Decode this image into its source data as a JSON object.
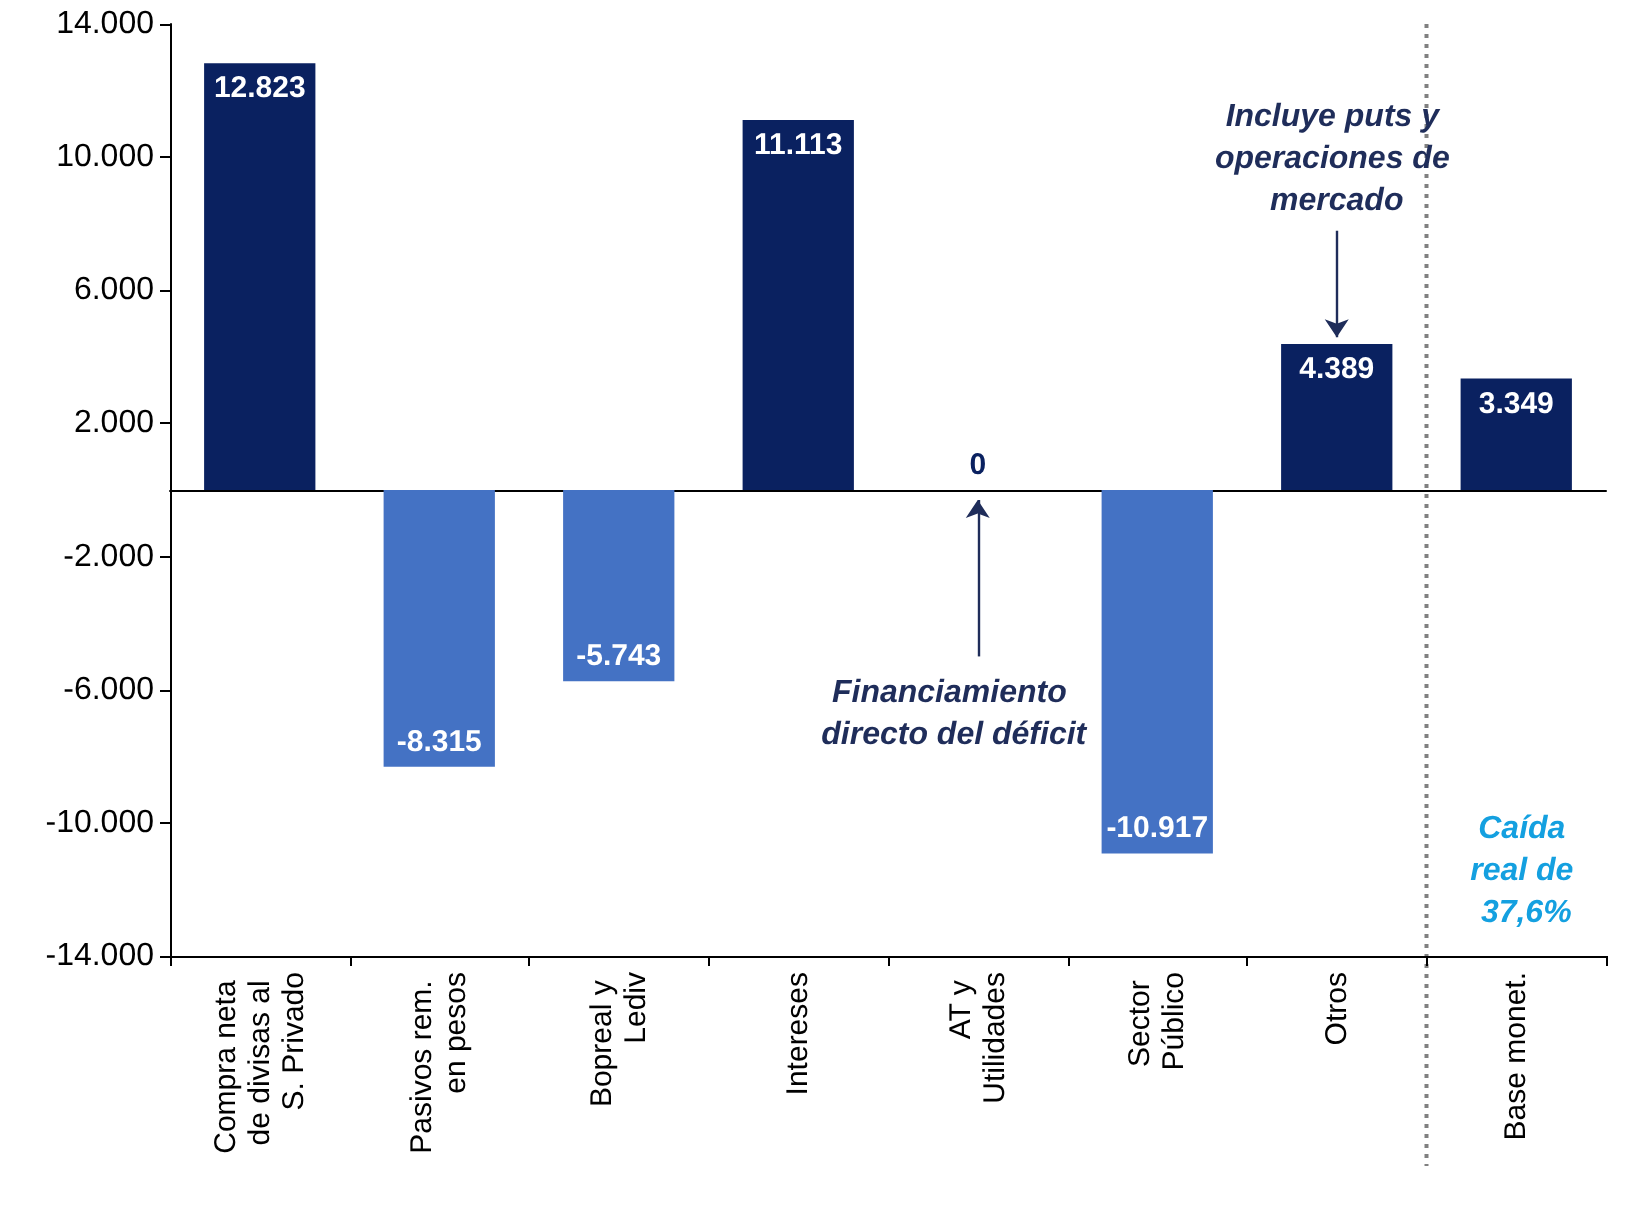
{
  "chart_data": {
    "type": "bar",
    "categories": [
      "Compra neta de divisas al S. Privado",
      "Pasivos rem. en pesos",
      "Bopreal y Lediv",
      "Intereses",
      "AT y Utilidades",
      "Sector Público",
      "Otros",
      "Base monet."
    ],
    "values": [
      12823,
      -8315,
      -5743,
      11113,
      0,
      -10917,
      4389,
      3349
    ],
    "colors": [
      "#0a2160",
      "#4472c4",
      "#4472c4",
      "#0a2160",
      "#0a2160",
      "#4472c4",
      "#0a2160",
      "#0a2160"
    ],
    "value_labels": [
      "12.823",
      "-8.315",
      "-5.743",
      "11.113",
      "0",
      "-10.917",
      "4.389",
      "3.349"
    ],
    "ylim": [
      -14000,
      14000
    ],
    "yticks": [
      {
        "value": -14000,
        "label": "-14.000"
      },
      {
        "value": -10000,
        "label": "-10.000"
      },
      {
        "value": -6000,
        "label": "-6.000"
      },
      {
        "value": -2000,
        "label": "-2.000"
      },
      {
        "value": 2000,
        "label": "2.000"
      },
      {
        "value": 6000,
        "label": "6.000"
      },
      {
        "value": 10000,
        "label": "10.000"
      },
      {
        "value": 14000,
        "label": "14.000"
      }
    ],
    "annotations": [
      {
        "text": "Incluye puts y operaciones de mercado",
        "x": "Otros",
        "y": 4389
      },
      "Financiamiento directo del déficit",
      "Caída real de 37,6%"
    ],
    "grid": false
  }
}
